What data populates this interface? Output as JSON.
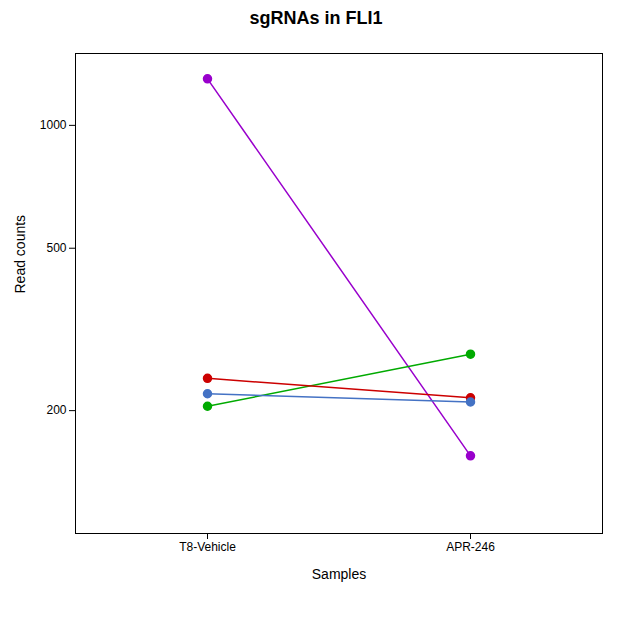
{
  "chart_data": {
    "type": "line",
    "title": "sgRNAs in FLI1",
    "xlabel": "Samples",
    "ylabel": "Read counts",
    "categories": [
      "T8-Vehicle",
      "APR-246"
    ],
    "series": [
      {
        "color": "#9900CC",
        "values": [
          1300,
          155
        ]
      },
      {
        "color": "#00AA00",
        "values": [
          205,
          275
        ]
      },
      {
        "color": "#CC0000",
        "values": [
          240,
          215
        ]
      },
      {
        "color": "#4472C4",
        "values": [
          220,
          210
        ]
      }
    ],
    "log": "y",
    "ylim": [
      100,
      1500
    ],
    "yticks": [
      200,
      500,
      1000
    ],
    "grid": false,
    "marker": "circle"
  }
}
